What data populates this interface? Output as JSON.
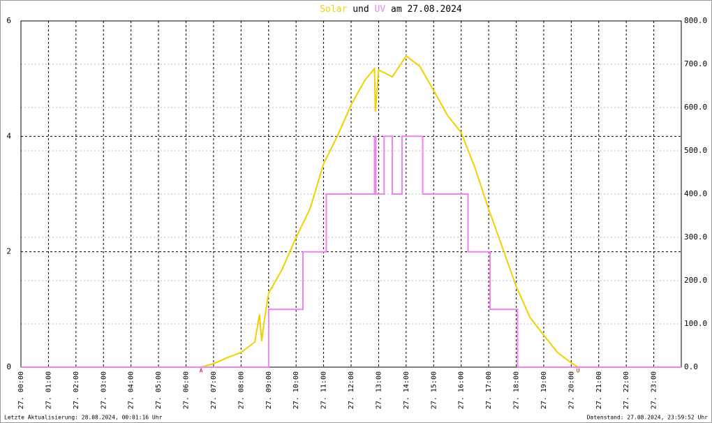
{
  "chart_data": {
    "type": "line",
    "title_joiner": "und",
    "title_date": "am 27.08.2024",
    "footer_left": "Letzte Aktualisierung: 28.08.2024, 00:01:16 Uhr",
    "footer_right": "Datenstand: 27.08.2024, 23:59:52 Uhr",
    "xlim": [
      0,
      24
    ],
    "xticks": [
      {
        "value": 0,
        "label": "27. 00:00"
      },
      {
        "value": 1,
        "label": "27. 01:00"
      },
      {
        "value": 2,
        "label": "27. 02:00"
      },
      {
        "value": 3,
        "label": "27. 03:00"
      },
      {
        "value": 4,
        "label": "27. 04:00"
      },
      {
        "value": 5,
        "label": "27. 05:00"
      },
      {
        "value": 6,
        "label": "27. 06:00"
      },
      {
        "value": 7,
        "label": "27. 07:00"
      },
      {
        "value": 8,
        "label": "27. 08:00"
      },
      {
        "value": 9,
        "label": "27. 09:00"
      },
      {
        "value": 10,
        "label": "27. 10:00"
      },
      {
        "value": 11,
        "label": "27. 11:00"
      },
      {
        "value": 12,
        "label": "27. 12:00"
      },
      {
        "value": 13,
        "label": "27. 13:00"
      },
      {
        "value": 14,
        "label": "27. 14:00"
      },
      {
        "value": 15,
        "label": "27. 15:00"
      },
      {
        "value": 16,
        "label": "27. 16:00"
      },
      {
        "value": 17,
        "label": "27. 17:00"
      },
      {
        "value": 18,
        "label": "27. 18:00"
      },
      {
        "value": 19,
        "label": "27. 19:00"
      },
      {
        "value": 20,
        "label": "27. 20:00"
      },
      {
        "value": 21,
        "label": "27. 21:00"
      },
      {
        "value": 22,
        "label": "27. 22:00"
      },
      {
        "value": 23,
        "label": "27. 23:00"
      }
    ],
    "ylim": [
      0,
      6
    ],
    "yticks": [
      0,
      2,
      4,
      6
    ],
    "y2lim": [
      0,
      800
    ],
    "y2ticks": [
      {
        "value": 0,
        "label": "0.0"
      },
      {
        "value": 100,
        "label": "100.0"
      },
      {
        "value": 200,
        "label": "200.0"
      },
      {
        "value": 300,
        "label": "300.0"
      },
      {
        "value": 400,
        "label": "400.0"
      },
      {
        "value": 500,
        "label": "500.0"
      },
      {
        "value": 600,
        "label": "600.0"
      },
      {
        "value": 700,
        "label": "700.0"
      },
      {
        "value": 800,
        "label": "800.0"
      }
    ],
    "grid": true,
    "annotations": [
      {
        "text": "A",
        "x": 6.55
      },
      {
        "text": "U",
        "x": 20.25
      }
    ],
    "series": [
      {
        "name": "Solar",
        "color": "#f2d000",
        "axis": "y2",
        "x": [
          0,
          6.55,
          7,
          7.5,
          8,
          8.5,
          8.67,
          8.75,
          8.85,
          9,
          9.5,
          10,
          10.5,
          11,
          11.5,
          12,
          12.5,
          12.85,
          12.88,
          13,
          13.5,
          14,
          14.5,
          15,
          15.5,
          16,
          16.5,
          17,
          17.5,
          18,
          18.5,
          19,
          19.5,
          20,
          20.25,
          24
        ],
        "values": [
          0,
          0,
          8,
          22,
          34,
          58,
          122,
          60,
          110,
          171,
          227,
          300,
          365,
          470,
          534,
          606,
          663,
          690,
          590,
          687,
          671,
          719,
          695,
          639,
          582,
          542,
          461,
          365,
          276,
          187,
          115,
          74,
          34,
          10,
          0,
          0
        ]
      },
      {
        "name": "UV",
        "color": "#ee82ee",
        "x": [
          0,
          9,
          9,
          10.25,
          10.25,
          11.1,
          11.1,
          12.85,
          12.85,
          12.9,
          12.9,
          13.2,
          13.2,
          13.5,
          13.5,
          13.85,
          13.85,
          14.6,
          14.6,
          16.25,
          16.25,
          17.05,
          17.05,
          18.05,
          18.05,
          24
        ],
        "values": [
          0,
          0,
          1,
          1,
          2,
          2,
          3,
          3,
          4,
          4,
          3,
          3,
          4,
          4,
          3,
          3,
          4,
          4,
          3,
          3,
          2,
          2,
          1,
          1,
          0,
          0
        ]
      }
    ]
  }
}
